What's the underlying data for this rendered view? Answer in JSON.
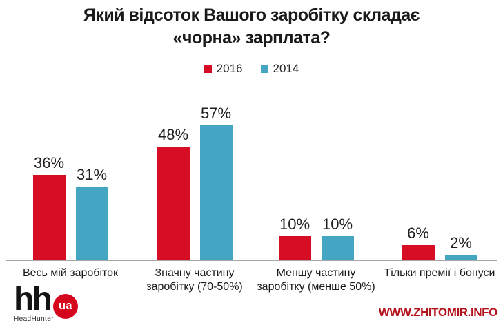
{
  "header": {
    "title_line1": "Який відсоток Вашого заробітку складає",
    "title_line2": "«чорна» зарплата?"
  },
  "chart_data": {
    "type": "bar",
    "title": "Який відсоток Вашого заробітку складає «чорна» зарплата?",
    "categories": [
      "Весь мій заробіток",
      "Значну частину заробітку (70-50%)",
      "Меншу частину заробітку (менше 50%)",
      "Тільки премії і бонуси"
    ],
    "series": [
      {
        "name": "2016",
        "color": "#d60d24",
        "values": [
          36,
          48,
          10,
          6
        ]
      },
      {
        "name": "2014",
        "color": "#45a6c3",
        "values": [
          31,
          57,
          10,
          2
        ]
      }
    ],
    "value_suffix": "%",
    "data_labels": true,
    "grid": false,
    "legend_position": "top",
    "ylim": [
      0,
      60
    ],
    "axis_color": "#a6a6a6"
  },
  "footer": {
    "logo_hh": "hh",
    "logo_ua": "ua",
    "logo_subtext": "HeadHunter",
    "watermark": "WWW.ZHITOMIR.INFO"
  }
}
